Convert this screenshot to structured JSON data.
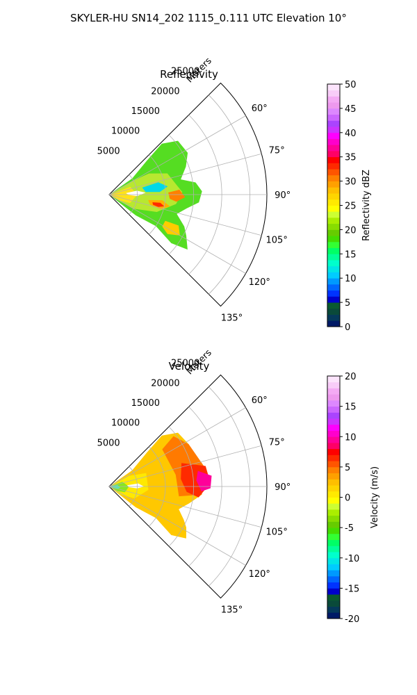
{
  "title": "SKYLER-HU  SN14_202  1115_0.111 UTC Elevation 10°",
  "chart_data": [
    {
      "type": "heatmap",
      "title": "Reflectivity",
      "radial_label": "Meters",
      "radial_ticks": [
        "5000",
        "10000",
        "15000",
        "20000",
        "25000"
      ],
      "radial_max": 28000,
      "angle_range_deg": [
        45,
        135
      ],
      "angle_ticks": [
        "60°",
        "75°",
        "90°",
        "105°",
        "120°",
        "135°"
      ],
      "colorbar": {
        "label": "Reflectivity dBZ",
        "ticks": [
          "0",
          "5",
          "10",
          "15",
          "20",
          "25",
          "30",
          "35",
          "40",
          "45",
          "50"
        ],
        "range": [
          0,
          50
        ],
        "colors": [
          "#001a66",
          "#05395a",
          "#0a4a3a",
          "#0a5a30",
          "#0000cc",
          "#0033ff",
          "#0066ff",
          "#0099ff",
          "#00ccff",
          "#00e6e6",
          "#00ffcc",
          "#00ff99",
          "#00ff66",
          "#33ff33",
          "#44dd00",
          "#66cc00",
          "#88dd00",
          "#aaee00",
          "#ccff33",
          "#ffff00",
          "#ffea00",
          "#ffd500",
          "#ffbf00",
          "#ffa000",
          "#ff8000",
          "#ff5500",
          "#ff2a00",
          "#ff0000",
          "#ff0066",
          "#ff0099",
          "#ff00cc",
          "#ff00ff",
          "#cc33ff",
          "#aa44ff",
          "#cc66ff",
          "#dd88ff",
          "#ee99ee",
          "#f4aaf4",
          "#f8ccf8",
          "#fce4fc"
        ]
      }
    },
    {
      "type": "heatmap",
      "title": "Velocity",
      "radial_label": "Meters",
      "radial_ticks": [
        "5000",
        "10000",
        "15000",
        "20000",
        "25000"
      ],
      "radial_max": 28000,
      "angle_range_deg": [
        45,
        135
      ],
      "angle_ticks": [
        "60°",
        "75°",
        "90°",
        "105°",
        "120°",
        "135°"
      ],
      "colorbar": {
        "label": "Velocity (m/s)",
        "ticks": [
          "-20",
          "-15",
          "-10",
          "-5",
          "0",
          "5",
          "10",
          "15",
          "20"
        ],
        "range": [
          -20,
          20
        ],
        "colors": [
          "#001a66",
          "#05395a",
          "#0a4a3a",
          "#0a5a30",
          "#0000cc",
          "#0033ff",
          "#0066ff",
          "#0099ff",
          "#00ccff",
          "#00e6e6",
          "#00ffcc",
          "#00ff99",
          "#00ff66",
          "#33ff33",
          "#44dd00",
          "#66cc00",
          "#88dd00",
          "#aaee00",
          "#ccff33",
          "#ffff00",
          "#ffea00",
          "#ffd500",
          "#ffbf00",
          "#ffa000",
          "#ff8000",
          "#ff5500",
          "#ff2a00",
          "#ff0000",
          "#ff0066",
          "#ff0099",
          "#ff00cc",
          "#ff00ff",
          "#cc33ff",
          "#aa44ff",
          "#cc66ff",
          "#dd88ff",
          "#ee99ee",
          "#f4aaf4",
          "#f8ccf8",
          "#fce4fc"
        ]
      }
    }
  ]
}
